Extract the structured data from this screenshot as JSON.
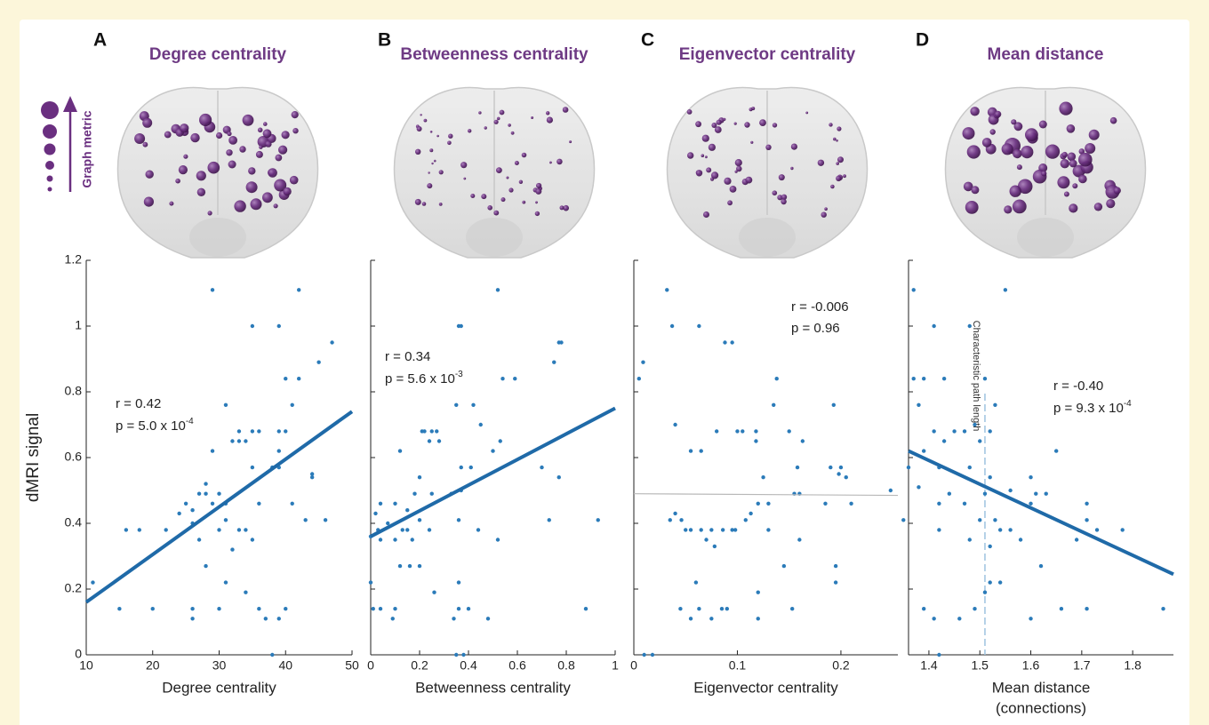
{
  "chart_data": [
    {
      "type": "scatter",
      "panel": "A",
      "title": "Degree centrality",
      "xlabel": [
        "Degree centrality"
      ],
      "ylabel": "dMRI signal",
      "legend_label": "Graph metric",
      "annotation_r": "r = 0.42",
      "annotation_p": "p = 5.0 x 10",
      "annotation_p_exponent": "-4",
      "xlim": [
        10,
        50
      ],
      "xticks": [
        10,
        20,
        30,
        40,
        50
      ],
      "ylim": [
        0,
        1.2
      ],
      "yticks": [
        0,
        0.2,
        0.4,
        0.6,
        0.8,
        1,
        1.2
      ],
      "ytick_labels": true,
      "color": "#2b7bb9",
      "x": [
        29,
        42,
        35,
        39,
        47,
        45,
        40,
        42,
        31,
        41,
        33,
        34,
        35,
        36,
        32,
        33,
        39,
        40,
        29,
        39,
        35,
        38,
        39,
        44,
        44,
        30,
        27,
        28,
        28,
        25,
        29,
        26,
        31,
        36,
        41,
        16,
        18,
        22,
        26,
        30,
        31,
        33,
        34,
        43,
        46,
        24,
        27,
        32,
        35,
        28,
        31,
        34,
        11,
        15,
        20,
        26,
        26,
        30,
        36,
        37,
        40,
        39,
        38
      ],
      "values": [
        1.11,
        1.11,
        1.0,
        1.0,
        0.95,
        0.89,
        0.84,
        0.84,
        0.76,
        0.76,
        0.68,
        0.65,
        0.68,
        0.68,
        0.65,
        0.65,
        0.68,
        0.68,
        0.62,
        0.62,
        0.57,
        0.57,
        0.57,
        0.55,
        0.54,
        0.49,
        0.49,
        0.49,
        0.52,
        0.46,
        0.46,
        0.44,
        0.46,
        0.46,
        0.46,
        0.38,
        0.38,
        0.38,
        0.4,
        0.38,
        0.41,
        0.38,
        0.38,
        0.41,
        0.41,
        0.43,
        0.35,
        0.32,
        0.35,
        0.27,
        0.22,
        0.19,
        0.22,
        0.14,
        0.14,
        0.14,
        0.11,
        0.14,
        0.14,
        0.11,
        0.14,
        0.11,
        0.0
      ],
      "trend_line": {
        "x": [
          10,
          50
        ],
        "y": [
          0.16,
          0.74
        ],
        "color": "#1f6aa8",
        "width": 4
      }
    },
    {
      "type": "scatter",
      "panel": "B",
      "title": "Betweenness centrality",
      "xlabel": [
        "Betweenness centrality"
      ],
      "annotation_r": "r = 0.34",
      "annotation_p": "p = 5.6 x 10",
      "annotation_p_exponent": "-3",
      "xlim": [
        0,
        1
      ],
      "xticks": [
        0,
        0.2,
        0.4,
        0.6,
        0.8,
        1
      ],
      "ylim": [
        0,
        1.2
      ],
      "yticks": [
        0,
        0.2,
        0.4,
        0.6,
        0.8,
        1,
        1.2
      ],
      "ytick_labels": false,
      "color": "#2b7bb9",
      "x": [
        0.52,
        0.36,
        0.37,
        0.77,
        0.78,
        0.75,
        0.54,
        0.59,
        0.35,
        0.42,
        0.45,
        0.21,
        0.22,
        0.25,
        0.27,
        0.24,
        0.28,
        0.12,
        0.5,
        0.53,
        0.37,
        0.41,
        0.7,
        0.2,
        0.37,
        0.25,
        0.18,
        0.33,
        0.77,
        0.02,
        0.04,
        0.1,
        0.15,
        0.2,
        0.07,
        0.03,
        0.13,
        0.15,
        0.24,
        0.36,
        0.44,
        0.73,
        0.93,
        0.0,
        0.04,
        0.1,
        0.17,
        0.12,
        0.16,
        0.2,
        0.52,
        0.26,
        0.36,
        0.0,
        0.01,
        0.04,
        0.1,
        0.09,
        0.36,
        0.34,
        0.4,
        0.48,
        0.88,
        0.35,
        0.38
      ],
      "values": [
        1.11,
        1.0,
        1.0,
        0.95,
        0.95,
        0.89,
        0.84,
        0.84,
        0.76,
        0.76,
        0.7,
        0.68,
        0.68,
        0.68,
        0.68,
        0.65,
        0.65,
        0.62,
        0.62,
        0.65,
        0.57,
        0.57,
        0.57,
        0.54,
        0.5,
        0.49,
        0.49,
        0.49,
        0.54,
        0.43,
        0.46,
        0.46,
        0.44,
        0.41,
        0.4,
        0.38,
        0.38,
        0.38,
        0.38,
        0.41,
        0.38,
        0.41,
        0.41,
        0.36,
        0.35,
        0.35,
        0.35,
        0.27,
        0.27,
        0.27,
        0.35,
        0.19,
        0.22,
        0.22,
        0.14,
        0.14,
        0.14,
        0.11,
        0.14,
        0.11,
        0.14,
        0.11,
        0.14,
        0.0,
        0.0
      ],
      "trend_line": {
        "x": [
          0,
          1
        ],
        "y": [
          0.36,
          0.75
        ],
        "color": "#1f6aa8",
        "width": 4
      }
    },
    {
      "type": "scatter",
      "panel": "C",
      "title": "Eigenvector centrality",
      "xlabel": [
        "Eigenvector centrality"
      ],
      "annotation_r": "r = -0.006",
      "annotation_p": "p = 0.96",
      "xlim": [
        0,
        0.255
      ],
      "xticks": [
        0,
        0.1,
        0.2
      ],
      "ylim": [
        0,
        1.2
      ],
      "yticks": [
        0,
        0.2,
        0.4,
        0.6,
        0.8,
        1,
        1.2
      ],
      "ytick_labels": false,
      "color": "#2b7bb9",
      "x": [
        0.032,
        0.037,
        0.063,
        0.088,
        0.095,
        0.009,
        0.005,
        0.138,
        0.193,
        0.135,
        0.04,
        0.08,
        0.1,
        0.105,
        0.118,
        0.15,
        0.118,
        0.163,
        0.055,
        0.065,
        0.158,
        0.19,
        0.2,
        0.198,
        0.205,
        0.125,
        0.155,
        0.16,
        0.248,
        0.04,
        0.035,
        0.046,
        0.05,
        0.055,
        0.065,
        0.075,
        0.086,
        0.095,
        0.098,
        0.108,
        0.113,
        0.12,
        0.13,
        0.185,
        0.21,
        0.07,
        0.078,
        0.13,
        0.145,
        0.16,
        0.195,
        0.195,
        0.12,
        0.06,
        0.045,
        0.055,
        0.063,
        0.075,
        0.085,
        0.09,
        0.12,
        0.153,
        0.01,
        0.018
      ],
      "values": [
        1.11,
        1.0,
        1.0,
        0.95,
        0.95,
        0.89,
        0.84,
        0.84,
        0.76,
        0.76,
        0.7,
        0.68,
        0.68,
        0.68,
        0.68,
        0.68,
        0.65,
        0.65,
        0.62,
        0.62,
        0.57,
        0.57,
        0.57,
        0.55,
        0.54,
        0.54,
        0.49,
        0.49,
        0.5,
        0.43,
        0.41,
        0.41,
        0.38,
        0.38,
        0.38,
        0.38,
        0.38,
        0.38,
        0.38,
        0.41,
        0.43,
        0.46,
        0.46,
        0.46,
        0.46,
        0.35,
        0.33,
        0.38,
        0.27,
        0.35,
        0.27,
        0.22,
        0.19,
        0.22,
        0.14,
        0.11,
        0.14,
        0.11,
        0.14,
        0.14,
        0.11,
        0.14,
        0.0,
        0.0
      ],
      "trend_line": {
        "x": [
          0,
          0.255
        ],
        "y": [
          0.49,
          0.485
        ],
        "color": "#b8b8b8",
        "width": 1.2
      }
    },
    {
      "type": "scatter",
      "panel": "D",
      "title": "Mean distance",
      "xlabel": [
        "Mean distance",
        "(connections)"
      ],
      "annotation_r": "r = -0.40",
      "annotation_p": "p = 9.3 x 10",
      "annotation_p_exponent": "-4",
      "reference_line": {
        "x": 1.51,
        "label": "Characteristic path length",
        "color": "#9ec3e0"
      },
      "xlim": [
        1.36,
        1.88
      ],
      "xticks": [
        1.4,
        1.5,
        1.6,
        1.7,
        1.8
      ],
      "ylim": [
        0,
        1.2
      ],
      "yticks": [
        0,
        0.2,
        0.4,
        0.6,
        0.8,
        1,
        1.2
      ],
      "ytick_labels": false,
      "color": "#2b7bb9",
      "x": [
        1.37,
        1.55,
        1.41,
        1.48,
        1.37,
        1.39,
        1.43,
        1.51,
        1.53,
        1.38,
        1.49,
        1.41,
        1.45,
        1.47,
        1.52,
        1.43,
        1.5,
        1.39,
        1.65,
        1.36,
        1.42,
        1.48,
        1.52,
        1.6,
        1.38,
        1.44,
        1.51,
        1.56,
        1.61,
        1.63,
        1.6,
        1.71,
        1.42,
        1.47,
        1.35,
        1.42,
        1.5,
        1.53,
        1.54,
        1.56,
        1.71,
        1.73,
        1.78,
        1.48,
        1.52,
        1.58,
        1.62,
        1.52,
        1.54,
        1.51,
        1.39,
        1.41,
        1.46,
        1.49,
        1.6,
        1.66,
        1.71,
        1.86,
        1.42,
        1.69
      ],
      "values": [
        1.11,
        1.11,
        1.0,
        1.0,
        0.84,
        0.84,
        0.84,
        0.84,
        0.76,
        0.76,
        0.7,
        0.68,
        0.68,
        0.68,
        0.68,
        0.65,
        0.65,
        0.62,
        0.62,
        0.57,
        0.57,
        0.57,
        0.54,
        0.54,
        0.51,
        0.49,
        0.49,
        0.5,
        0.49,
        0.49,
        0.46,
        0.46,
        0.46,
        0.46,
        0.41,
        0.38,
        0.41,
        0.41,
        0.38,
        0.38,
        0.41,
        0.38,
        0.38,
        0.35,
        0.33,
        0.35,
        0.27,
        0.22,
        0.22,
        0.19,
        0.14,
        0.11,
        0.11,
        0.14,
        0.11,
        0.14,
        0.14,
        0.14,
        0.0,
        0.35
      ],
      "trend_line": {
        "x": [
          1.36,
          1.88
        ],
        "y": [
          0.62,
          0.245
        ],
        "color": "#1f6aa8",
        "width": 4
      }
    }
  ]
}
